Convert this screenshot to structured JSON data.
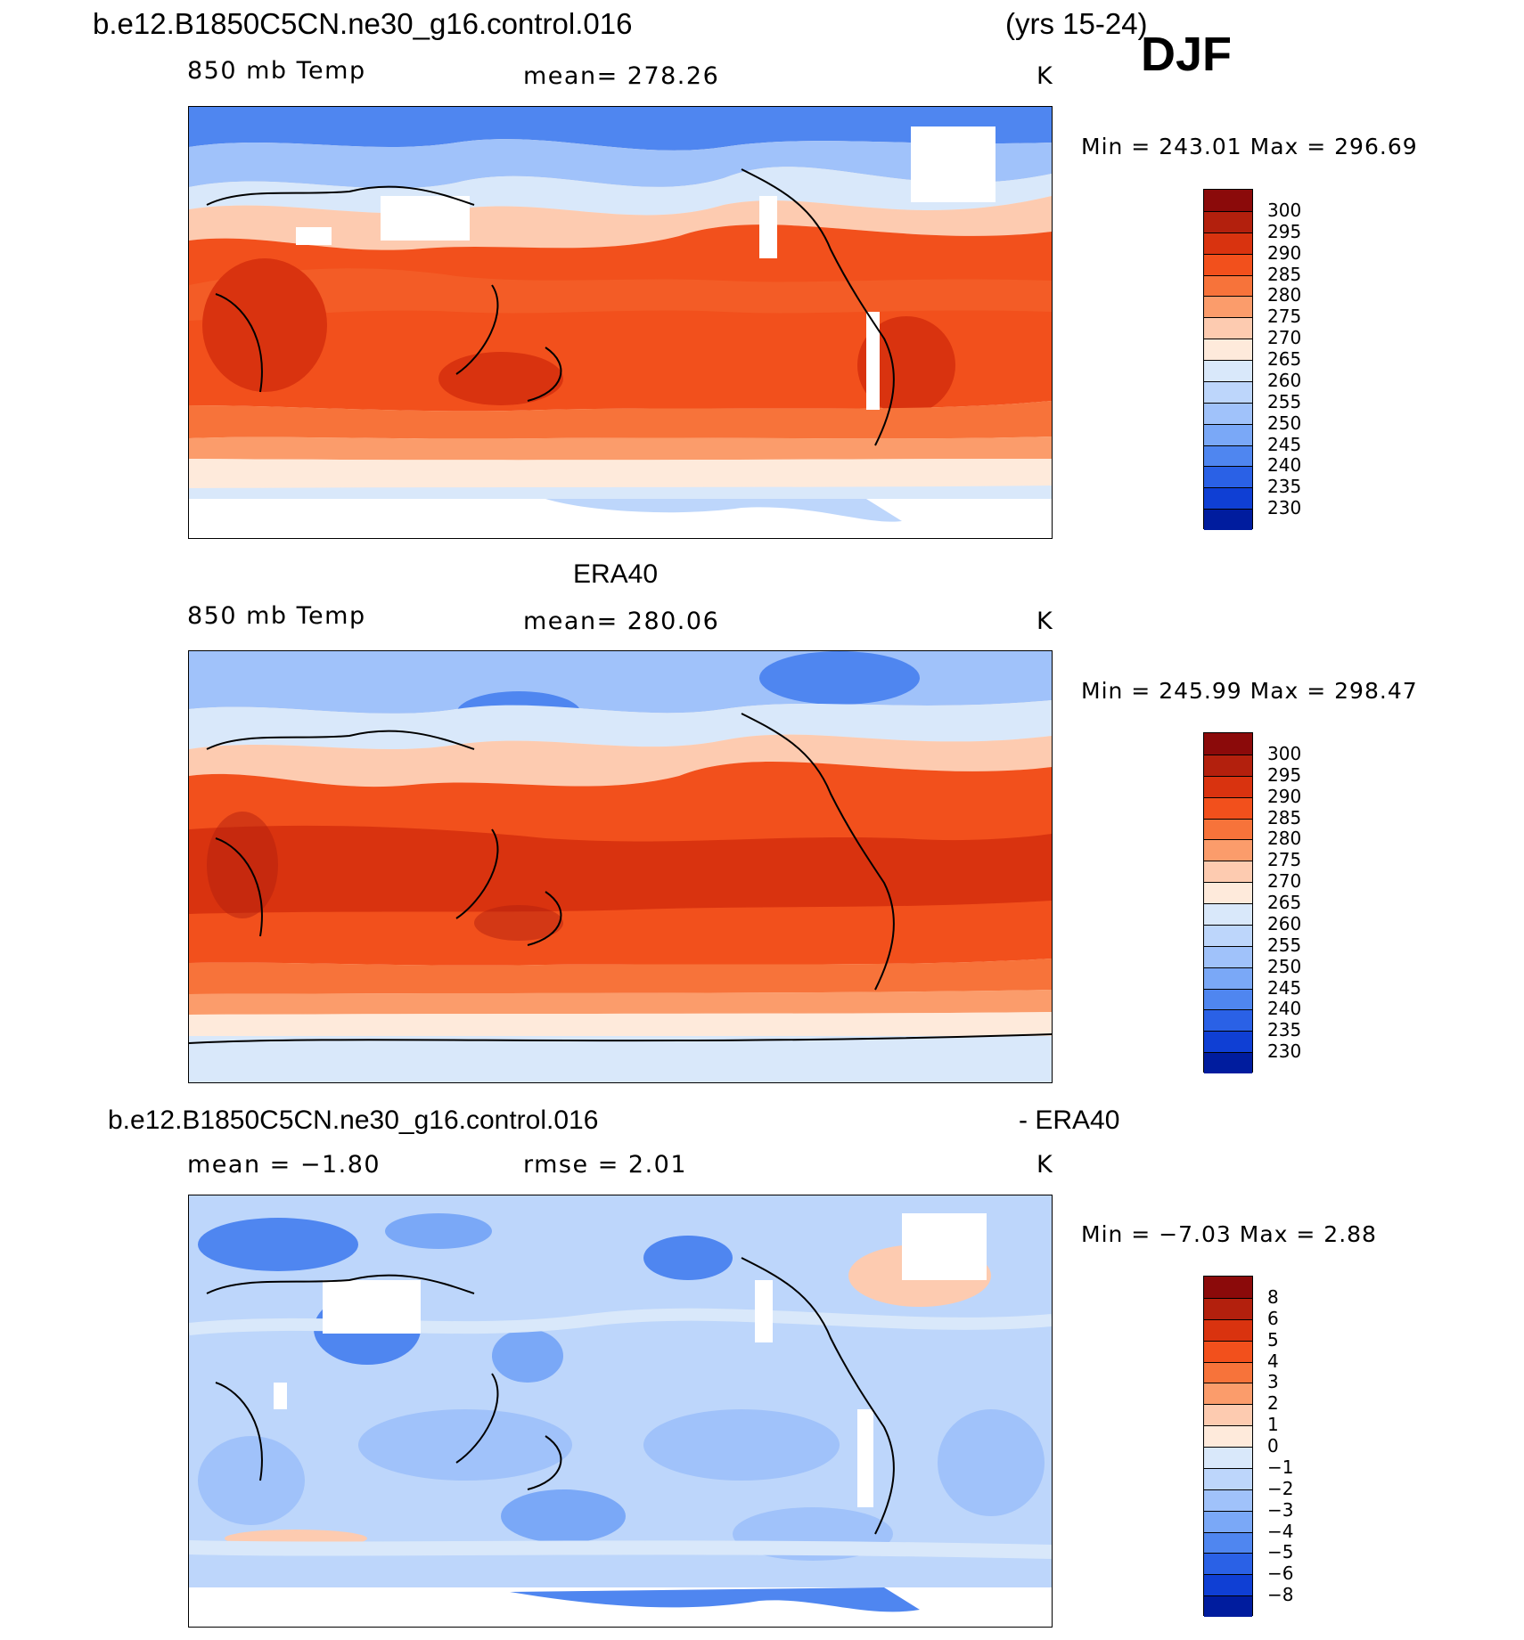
{
  "header": {
    "case_name": "b.e12.B1850C5CN.ne30_g16.control.016",
    "years": "(yrs 15-24)",
    "season": "DJF"
  },
  "panels": [
    {
      "id": "model",
      "title": "",
      "left_label": "850 mb Temp",
      "center_label": "mean= 278.26",
      "right_label": "K",
      "minmax": "Min = 243.01 Max = 296.69",
      "colorbar_levels": [
        "300",
        "295",
        "290",
        "285",
        "280",
        "275",
        "270",
        "265",
        "260",
        "255",
        "250",
        "245",
        "240",
        "235",
        "230"
      ]
    },
    {
      "id": "obs",
      "title": "ERA40",
      "left_label": "850 mb Temp",
      "center_label": "mean= 280.06",
      "right_label": "K",
      "minmax": "Min = 245.99 Max = 298.47",
      "colorbar_levels": [
        "300",
        "295",
        "290",
        "285",
        "280",
        "275",
        "270",
        "265",
        "260",
        "255",
        "250",
        "245",
        "240",
        "235",
        "230"
      ]
    },
    {
      "id": "diff",
      "title_left": "b.e12.B1850C5CN.ne30_g16.control.016",
      "title_right": "- ERA40",
      "left_label": "mean = −1.80",
      "center_label": "rmse = 2.01",
      "right_label": "K",
      "minmax": "Min = −7.03 Max = 2.88",
      "colorbar_levels": [
        "8",
        "6",
        "5",
        "4",
        "3",
        "2",
        "1",
        "0",
        "−1",
        "−2",
        "−3",
        "−4",
        "−5",
        "−6",
        "−8"
      ]
    }
  ],
  "colors": {
    "temp_scale": [
      "#8b0a0a",
      "#b3200d",
      "#d9330f",
      "#f2501c",
      "#f7733a",
      "#fb9c6b",
      "#fdcbb0",
      "#feeadb",
      "#d9e8fa",
      "#bdd6fb",
      "#a0c2fa",
      "#7aa8f7",
      "#4f86f0",
      "#2a61e6",
      "#0f3fd4",
      "#001c9e"
    ],
    "diff_scale": [
      "#8b0a0a",
      "#b3200d",
      "#d9330f",
      "#f2501c",
      "#f7733a",
      "#fb9c6b",
      "#fdcbb0",
      "#feeadb",
      "#d9e8fa",
      "#bdd6fb",
      "#a0c2fa",
      "#7aa8f7",
      "#4f86f0",
      "#2a61e6",
      "#0f3fd4",
      "#001c9e"
    ]
  }
}
